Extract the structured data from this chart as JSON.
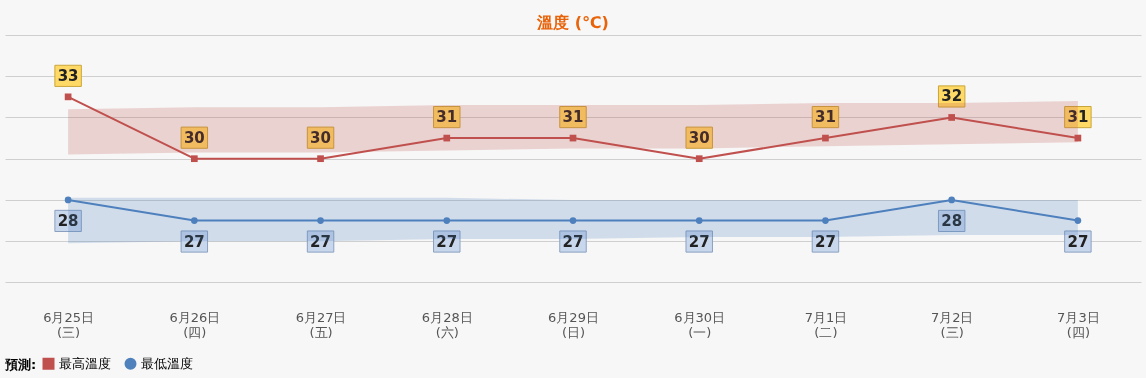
{
  "chart_data": {
    "type": "line",
    "title": "溫度 (℃)",
    "legend_title": "預測:",
    "categories": [
      "6月25日\n(三)",
      "6月26日\n(四)",
      "6月27日\n(五)",
      "6月28日\n(六)",
      "6月29日\n(日)",
      "6月30日\n(一)",
      "7月1日\n(二)",
      "7月2日\n(三)",
      "7月3日\n(四)"
    ],
    "series": [
      {
        "name": "最高溫度",
        "color": "#c0504d",
        "marker": "square",
        "values": [
          33,
          30,
          30,
          31,
          31,
          30,
          31,
          32,
          31
        ],
        "lower": [
          30.2,
          30.3,
          30.3,
          30.4,
          30.5,
          30.5,
          30.6,
          30.7,
          30.8
        ],
        "upper": [
          32.4,
          32.5,
          32.5,
          32.6,
          32.6,
          32.6,
          32.7,
          32.7,
          32.8
        ]
      },
      {
        "name": "最低溫度",
        "color": "#4f81bd",
        "marker": "circle",
        "values": [
          28,
          27,
          27,
          27,
          27,
          27,
          27,
          28,
          27
        ],
        "lower": [
          25.9,
          26.0,
          26.0,
          26.1,
          26.1,
          26.2,
          26.2,
          26.3,
          26.3
        ],
        "upper": [
          28.1,
          28.1,
          28.1,
          28.1,
          28.0,
          28.0,
          28.0,
          28.0,
          28.0
        ]
      }
    ],
    "tick_labels": "x",
    "grid": "y",
    "data_labels": true,
    "legend": "bottom",
    "line_style": "solid"
  }
}
